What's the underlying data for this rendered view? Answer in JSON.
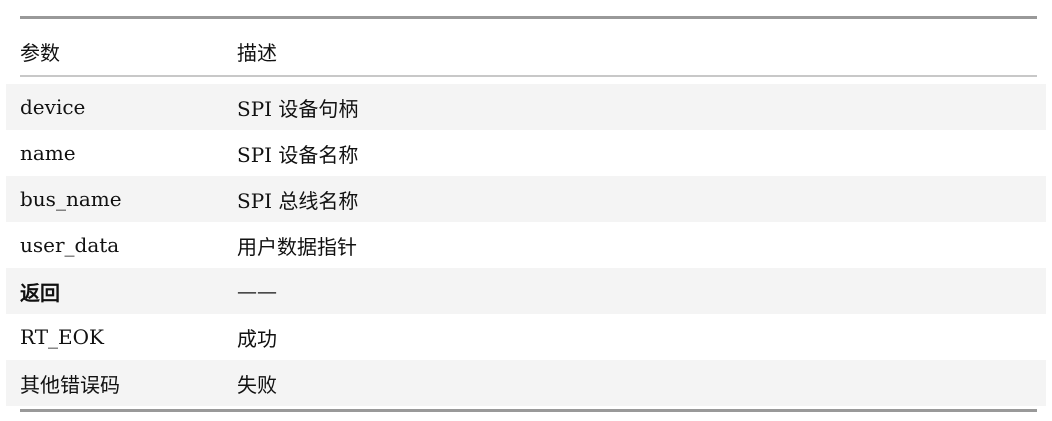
{
  "table": {
    "headers": [
      "参数",
      "描述"
    ],
    "rows": [
      {
        "param": "device",
        "desc": "SPI 设备句柄"
      },
      {
        "param": "name",
        "desc": "SPI 设备名称"
      },
      {
        "param": "bus_name",
        "desc": "SPI 总线名称"
      },
      {
        "param": "user_data",
        "desc": "用户数据指针"
      },
      {
        "param": "返回",
        "desc": "——"
      },
      {
        "param": "RT_EOK",
        "desc": "成功"
      },
      {
        "param": "其他错误码",
        "desc": "失败"
      }
    ]
  }
}
